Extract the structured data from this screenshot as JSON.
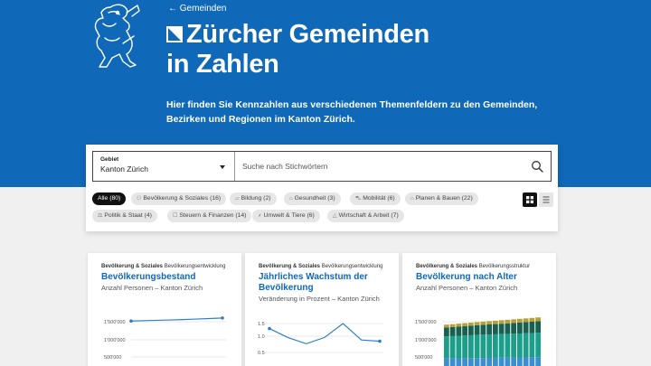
{
  "header": {
    "back_link": "← Gemeinden",
    "title_line1": "Zürcher Gemeinden",
    "title_line2": "in Zahlen",
    "subtitle": "Hier finden Sie Kennzahlen aus verschiedenen Themenfeldern zu den Gemeinden, Bezirken und Regionen im Kanton Zürich."
  },
  "filter": {
    "gebiet_label": "Gebiet",
    "gebiet_value": "Kanton Zürich",
    "search_placeholder": "Suche nach Stichwörtern"
  },
  "chips": [
    {
      "label": "Alle (80)",
      "active": true,
      "icon": ""
    },
    {
      "label": "Bevölkerung & Soziales (16)",
      "icon": "people-icon"
    },
    {
      "label": "Bildung (2)",
      "icon": "graduation-icon"
    },
    {
      "label": "Gesundheit (3)",
      "icon": "health-icon"
    },
    {
      "label": "Mobilität (6)",
      "icon": "mobility-icon"
    },
    {
      "label": "Planen & Bauen (22)",
      "icon": "building-icon"
    },
    {
      "label": "Politik & Staat (4)",
      "icon": "politics-icon"
    },
    {
      "label": "Steuern & Finanzen (14)",
      "icon": "finance-icon"
    },
    {
      "label": "Umwelt & Tiere (6)",
      "icon": "environment-icon"
    },
    {
      "label": "Wirtschaft & Arbeit (7)",
      "icon": "economy-icon"
    }
  ],
  "cards": [
    {
      "category": "Bevölkerung & Soziales",
      "topic": "Bevölkerungsentwicklung",
      "title": "Bevölkerungsbestand",
      "subtitle": "Anzahl Personen – Kanton Zürich",
      "ticks": [
        "1'500'000",
        "1'000'000",
        "500'000"
      ]
    },
    {
      "category": "Bevölkerung & Soziales",
      "topic": "Bevölkerungsentwicklung",
      "title": "Jährliches Wachstum der Bevölkerung",
      "subtitle": "Veränderung in Prozent – Kanton Zürich",
      "ticks": [
        "1.5",
        "1.0",
        "0.5"
      ]
    },
    {
      "category": "Bevölkerung & Soziales",
      "topic": "Bevölkerungsstruktur",
      "title": "Bevölkerung nach Alter",
      "subtitle": "Anzahl Personen – Kanton Zürich",
      "ticks": [
        "1'500'000",
        "1'000'000",
        "500'000"
      ]
    }
  ],
  "colors": {
    "brand_blue": "#0f68b8",
    "chip_bg": "#e6e6e6",
    "chip_active_bg": "#111111"
  },
  "chart_data": [
    {
      "type": "line",
      "ylim": [
        0,
        1700000
      ],
      "series": [
        {
          "values": [
            1520000,
            1530000,
            1540000,
            1550000,
            1560000,
            1575000,
            1590000,
            1605000
          ]
        }
      ]
    },
    {
      "type": "line",
      "ylim": [
        0.5,
        1.6
      ],
      "series": [
        {
          "values": [
            1.3,
            0.95,
            0.7,
            0.95,
            1.5,
            0.85,
            0.8
          ]
        }
      ]
    },
    {
      "type": "bar",
      "ylim": [
        0,
        1700000
      ],
      "series": [
        {
          "values": [
            470000,
            470000,
            475000,
            478000,
            480000,
            482000,
            485000,
            488000,
            490000,
            492000,
            495000,
            498000,
            500000,
            502000,
            505000,
            508000
          ]
        },
        {
          "values": [
            630000,
            635000,
            640000,
            645000,
            650000,
            655000,
            660000,
            663000,
            666000,
            670000,
            673000,
            676000,
            680000,
            684000,
            688000,
            692000
          ]
        },
        {
          "values": [
            250000,
            255000,
            260000,
            265000,
            270000,
            275000,
            280000,
            285000,
            290000,
            295000,
            300000,
            305000,
            310000,
            315000,
            320000,
            325000
          ]
        },
        {
          "values": [
            80000,
            82000,
            84000,
            86000,
            88000,
            90000,
            92000,
            94000,
            96000,
            98000,
            100000,
            102000,
            104000,
            106000,
            108000,
            110000
          ]
        }
      ],
      "colors": [
        "#3b8fd0",
        "#1b9e8a",
        "#18604f",
        "#b7a035"
      ]
    }
  ]
}
